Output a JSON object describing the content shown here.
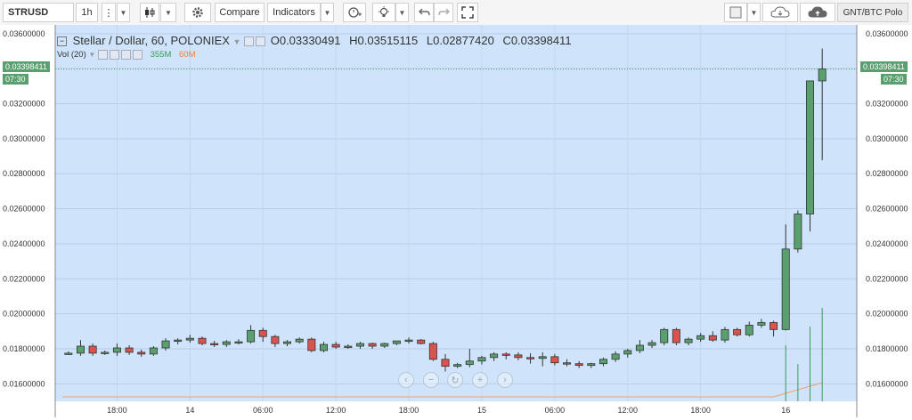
{
  "toolbar": {
    "symbol": "STRUSD",
    "interval": "1h",
    "compare_label": "Compare",
    "indicators_label": "Indicators",
    "right_label": "GNT/BTC Polo"
  },
  "legend": {
    "title": "Stellar / Dollar, 60, POLONIEX",
    "o_label": "O",
    "o_value": "0.03330491",
    "h_label": "H",
    "h_value": "0.03515115",
    "l_label": "L",
    "l_value": "0.02877420",
    "c_label": "C",
    "c_value": "0.03398411",
    "vol_label": "Vol (20)",
    "vol_value": "355M",
    "vol_ma": "60M"
  },
  "last_price": "0.03398411",
  "countdown": "07:30",
  "colors": {
    "up": "#5aa06f",
    "down": "#d9534f",
    "background": "#cfe4fb",
    "volume_ma": "#f4a26b"
  },
  "chart_data": {
    "type": "candlestick",
    "y_axis": {
      "min": 0.015,
      "max": 0.0365,
      "ticks": [
        "0.03600000",
        "0.03400000",
        "0.03200000",
        "0.03000000",
        "0.02800000",
        "0.02600000",
        "0.02400000",
        "0.02200000",
        "0.02000000",
        "0.01800000",
        "0.01600000"
      ]
    },
    "x_ticks": [
      "18:00",
      "14",
      "06:00",
      "12:00",
      "18:00",
      "15",
      "06:00",
      "12:00",
      "18:00",
      "16"
    ],
    "grid": true,
    "ohlc": [
      [
        0.01775,
        0.01785,
        0.01765,
        0.01775
      ],
      [
        0.01775,
        0.0185,
        0.0176,
        0.01815
      ],
      [
        0.01815,
        0.0183,
        0.0176,
        0.01775
      ],
      [
        0.01775,
        0.0179,
        0.01765,
        0.0178
      ],
      [
        0.0178,
        0.0183,
        0.0176,
        0.01805
      ],
      [
        0.01805,
        0.0182,
        0.01765,
        0.0178
      ],
      [
        0.0178,
        0.01795,
        0.01755,
        0.0177
      ],
      [
        0.0177,
        0.01815,
        0.0176,
        0.01805
      ],
      [
        0.01805,
        0.0186,
        0.0179,
        0.01845
      ],
      [
        0.01845,
        0.0186,
        0.01825,
        0.0185
      ],
      [
        0.0185,
        0.0188,
        0.01835,
        0.0186
      ],
      [
        0.0186,
        0.0187,
        0.0182,
        0.0183
      ],
      [
        0.0183,
        0.01845,
        0.0181,
        0.01825
      ],
      [
        0.01825,
        0.0185,
        0.0181,
        0.0184
      ],
      [
        0.0184,
        0.01855,
        0.01825,
        0.0184
      ],
      [
        0.0184,
        0.01935,
        0.0183,
        0.01905
      ],
      [
        0.01905,
        0.0192,
        0.0184,
        0.0187
      ],
      [
        0.0187,
        0.0188,
        0.0181,
        0.0183
      ],
      [
        0.0183,
        0.0185,
        0.01815,
        0.0184
      ],
      [
        0.0184,
        0.01865,
        0.0183,
        0.01855
      ],
      [
        0.01855,
        0.01865,
        0.0178,
        0.0179
      ],
      [
        0.0179,
        0.0184,
        0.0178,
        0.01825
      ],
      [
        0.01825,
        0.0184,
        0.018,
        0.0181
      ],
      [
        0.0181,
        0.01825,
        0.018,
        0.01815
      ],
      [
        0.01815,
        0.0184,
        0.018,
        0.0183
      ],
      [
        0.0183,
        0.01835,
        0.018,
        0.01815
      ],
      [
        0.01815,
        0.01835,
        0.01805,
        0.0183
      ],
      [
        0.0183,
        0.01845,
        0.0182,
        0.01845
      ],
      [
        0.01845,
        0.01865,
        0.0183,
        0.0185
      ],
      [
        0.0185,
        0.01855,
        0.01825,
        0.0183
      ],
      [
        0.0183,
        0.0184,
        0.0173,
        0.0174
      ],
      [
        0.0174,
        0.0177,
        0.0167,
        0.017
      ],
      [
        0.017,
        0.0172,
        0.0169,
        0.0171
      ],
      [
        0.0171,
        0.018,
        0.01695,
        0.0173
      ],
      [
        0.0173,
        0.0176,
        0.0171,
        0.0175
      ],
      [
        0.0175,
        0.0178,
        0.0173,
        0.0177
      ],
      [
        0.0177,
        0.0178,
        0.0174,
        0.01765
      ],
      [
        0.01765,
        0.0178,
        0.01735,
        0.0175
      ],
      [
        0.0175,
        0.01775,
        0.01715,
        0.01745
      ],
      [
        0.01745,
        0.0178,
        0.017,
        0.01755
      ],
      [
        0.01755,
        0.0177,
        0.01705,
        0.0172
      ],
      [
        0.0172,
        0.0174,
        0.017,
        0.01715
      ],
      [
        0.01715,
        0.0173,
        0.0169,
        0.01705
      ],
      [
        0.01705,
        0.0172,
        0.0169,
        0.01715
      ],
      [
        0.01715,
        0.0175,
        0.017,
        0.0174
      ],
      [
        0.0174,
        0.01785,
        0.01725,
        0.0177
      ],
      [
        0.0177,
        0.018,
        0.0175,
        0.0179
      ],
      [
        0.0179,
        0.0185,
        0.01775,
        0.0182
      ],
      [
        0.0182,
        0.0185,
        0.01805,
        0.01835
      ],
      [
        0.01835,
        0.0192,
        0.0182,
        0.0191
      ],
      [
        0.0191,
        0.0192,
        0.0182,
        0.01835
      ],
      [
        0.01835,
        0.01865,
        0.0182,
        0.01855
      ],
      [
        0.01855,
        0.0189,
        0.0184,
        0.01875
      ],
      [
        0.01875,
        0.019,
        0.0184,
        0.0185
      ],
      [
        0.0185,
        0.01925,
        0.01835,
        0.0191
      ],
      [
        0.0191,
        0.0192,
        0.0187,
        0.0188
      ],
      [
        0.0188,
        0.01955,
        0.0187,
        0.01935
      ],
      [
        0.01935,
        0.0197,
        0.0192,
        0.0195
      ],
      [
        0.0195,
        0.0196,
        0.0187,
        0.0191
      ],
      [
        0.0191,
        0.0251,
        0.01905,
        0.0237
      ],
      [
        0.0237,
        0.0259,
        0.0235,
        0.0257
      ],
      [
        0.0257,
        0.0333,
        0.0247,
        0.0333
      ],
      [
        0.0333,
        0.03515,
        0.02877,
        0.03398
      ]
    ],
    "volume_spikes": [
      {
        "index": 59,
        "value": 0.6
      },
      {
        "index": 60,
        "value": 0.4
      },
      {
        "index": 61,
        "value": 0.8
      },
      {
        "index": 62,
        "value": 1.0
      }
    ]
  },
  "navigation": {
    "back": "‹",
    "zoom_out": "−",
    "reset": "↻",
    "zoom_in": "+",
    "forward": "›"
  }
}
